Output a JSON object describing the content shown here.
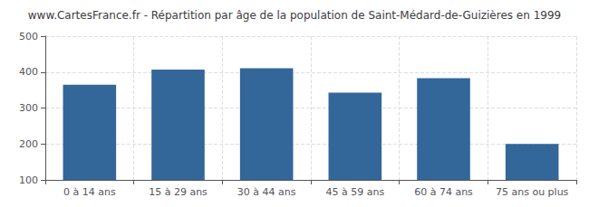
{
  "chart_data": {
    "type": "bar",
    "title": "www.CartesFrance.fr - Répartition par âge de la population de Saint-Médard-de-Guizières en 1999",
    "categories": [
      "0 à 14 ans",
      "15 à 29 ans",
      "30 à 44 ans",
      "45 à 59 ans",
      "60 à 74 ans",
      "75 ans ou plus"
    ],
    "values": [
      365,
      407,
      411,
      343,
      383,
      200
    ],
    "color": "#336699",
    "ylim": [
      100,
      500
    ],
    "yticks": [
      100,
      200,
      300,
      400,
      500
    ],
    "grid": true
  }
}
